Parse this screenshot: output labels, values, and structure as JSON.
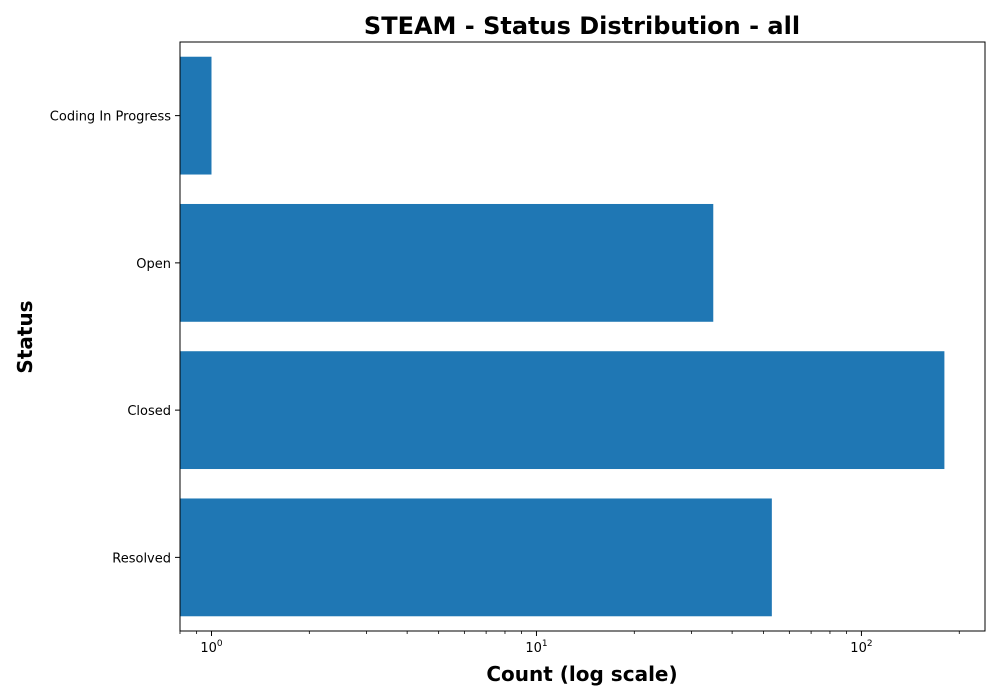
{
  "chart_data": {
    "type": "bar",
    "orientation": "horizontal",
    "title": "STEAM - Status Distribution - all",
    "xlabel": "Count (log scale)",
    "ylabel": "Status",
    "x_scale": "log",
    "xlim": [
      0.8,
      240
    ],
    "x_major_ticks": [
      {
        "base": "10",
        "exp": "0",
        "value": 1
      },
      {
        "base": "10",
        "exp": "1",
        "value": 10
      },
      {
        "base": "10",
        "exp": "2",
        "value": 100
      }
    ],
    "categories": [
      "Coding In Progress",
      "Open",
      "Closed",
      "Resolved"
    ],
    "values": [
      1,
      35,
      180,
      53
    ],
    "bar_color": "#1f77b4",
    "grid": false,
    "legend": "none"
  }
}
